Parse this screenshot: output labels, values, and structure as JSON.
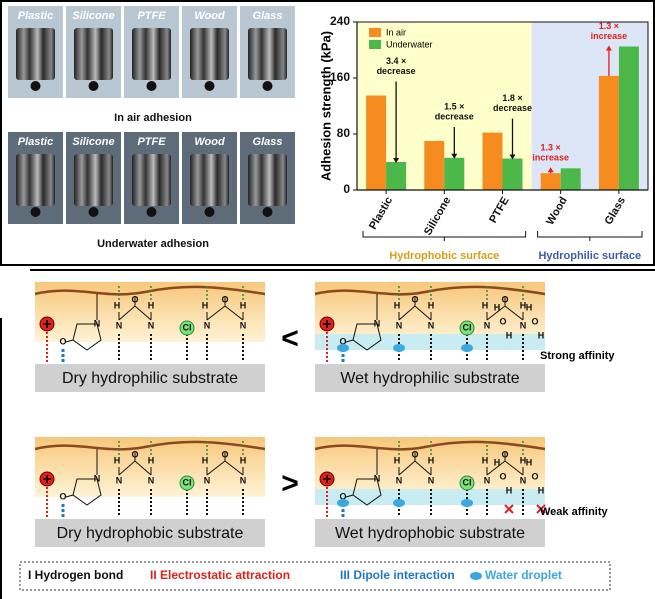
{
  "photos": {
    "materials": [
      "Plastic",
      "Silicone",
      "PTFE",
      "Wood",
      "Glass"
    ],
    "captions": [
      "In air adhesion",
      "Underwater adhesion"
    ]
  },
  "chart_data": {
    "type": "bar",
    "y_label": "Adhesion strength (kPa)",
    "categories": [
      "Plastic",
      "Silicone",
      "PTFE",
      "Wood",
      "Glass"
    ],
    "series": [
      {
        "name": "In air",
        "color": "#f68b1f",
        "values": [
          135,
          70,
          82,
          24,
          163
        ]
      },
      {
        "name": "Underwater",
        "color": "#4cb849",
        "values": [
          40,
          46,
          45,
          31,
          205
        ]
      }
    ],
    "ylim": [
      0,
      240
    ],
    "yticks": [
      0,
      80,
      160,
      240
    ],
    "legend": "upper left",
    "groups": [
      {
        "label": "Hydrophobic surface",
        "start": 0,
        "end": 2,
        "background": "#ffffcc",
        "text_color": "#d4a017"
      },
      {
        "label": "Hydrophilic surface",
        "start": 3,
        "end": 4,
        "background": "#dde6f7",
        "text_color": "#3b5bab"
      }
    ],
    "annotations": [
      {
        "category": 0,
        "lines": [
          "3.4 ×",
          "decrease"
        ],
        "color": "#111111"
      },
      {
        "category": 1,
        "lines": [
          "1.5 ×",
          "decrease"
        ],
        "color": "#111111"
      },
      {
        "category": 2,
        "lines": [
          "1.8 ×",
          "decrease"
        ],
        "color": "#111111"
      },
      {
        "category": 3,
        "lines": [
          "1.3 ×",
          "increase"
        ],
        "color": "#e0201b"
      },
      {
        "category": 4,
        "lines": [
          "1.3 ×",
          "increase"
        ],
        "color": "#e0201b"
      }
    ]
  },
  "diagram": {
    "panels": [
      {
        "substrate": "Dry hydrophilic  substrate",
        "wet": false,
        "hydrophobic": false
      },
      {
        "substrate": "Wet hydrophilic  substrate",
        "wet": true,
        "hydrophobic": false
      },
      {
        "substrate": "Dry hydrophobic  substrate",
        "wet": false,
        "hydrophobic": true
      },
      {
        "substrate": "Wet hydrophobic  substrate",
        "wet": true,
        "hydrophobic": true
      }
    ],
    "atoms": [
      "N",
      "O",
      "H",
      "N",
      "O",
      "N",
      "H",
      "Cl",
      "H",
      "N",
      "O",
      "N",
      "H"
    ],
    "water_atoms": [
      "H",
      "O",
      "H",
      "H",
      "O",
      "H"
    ],
    "comparisons": [
      "<",
      ">"
    ],
    "affinities": [
      "Strong affinity",
      "Weak affinity"
    ],
    "legend": [
      {
        "label": "I  Hydrogen bond",
        "color": "#111111"
      },
      {
        "label": "II Electrostatic attraction",
        "color": "#e0201b"
      },
      {
        "label": "III Dipole interaction",
        "color": "#1f78c8"
      },
      {
        "label": "Water droplet",
        "color": "#3aa9e0"
      }
    ]
  }
}
